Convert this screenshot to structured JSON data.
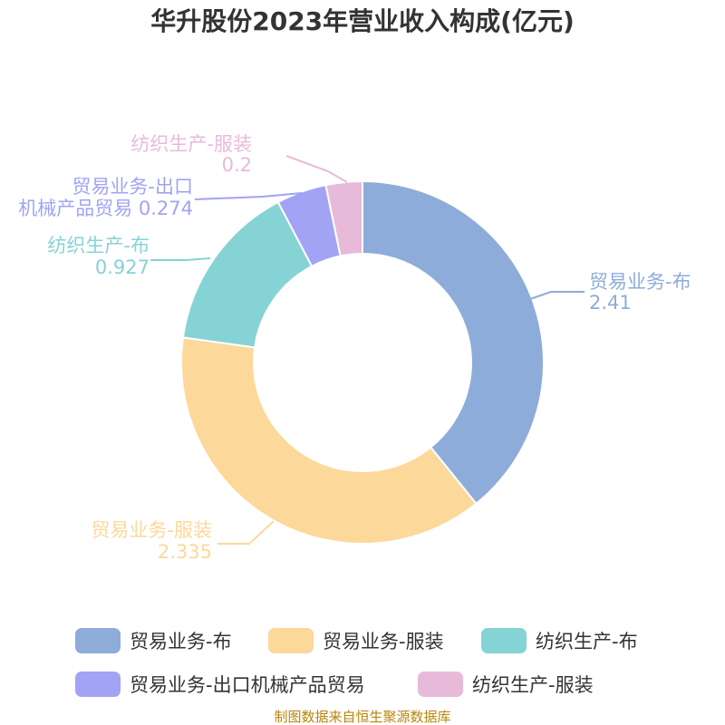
{
  "chart_data": {
    "type": "pie",
    "variant": "donut",
    "title": "华升股份2023年营业收入构成(亿元)",
    "series": [
      {
        "name": "贸易业务-布",
        "value": 2.41,
        "value_label": "2.41",
        "color": "#8eacd9"
      },
      {
        "name": "贸易业务-服装",
        "value": 2.335,
        "value_label": "2.335",
        "color": "#fdd89b"
      },
      {
        "name": "纺织生产-布",
        "value": 0.927,
        "value_label": "0.927",
        "color": "#86d3d6"
      },
      {
        "name": "贸易业务-出口机械产品贸易",
        "name_lines": [
          "贸易业务-出口",
          "机械产品贸易"
        ],
        "value": 0.274,
        "value_label": "0.274",
        "color": "#a2a3f5"
      },
      {
        "name": "纺织生产-服装",
        "value": 0.2,
        "value_label": "0.2",
        "color": "#e8bad9"
      }
    ],
    "legend_position": "bottom"
  },
  "source": "制图数据来自恒生聚源数据库"
}
